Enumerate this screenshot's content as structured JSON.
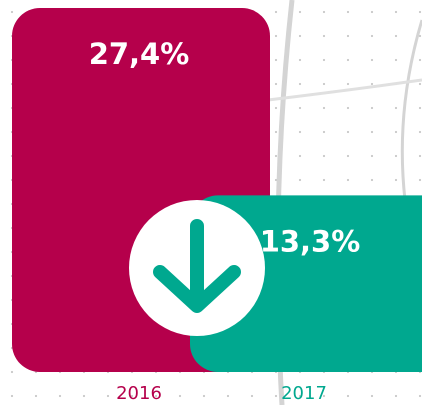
{
  "chart_data": {
    "type": "bar",
    "categories": [
      "2016",
      "2017"
    ],
    "values": [
      27.4,
      13.3
    ],
    "value_labels": [
      "27,4%",
      "13,3%"
    ],
    "colors": [
      "#b5004b",
      "#00a88f"
    ]
  }
}
